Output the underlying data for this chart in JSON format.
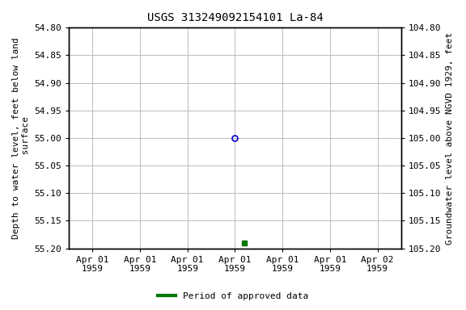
{
  "title": "USGS 313249092154101 La-84",
  "ylabel_left": "Depth to water level, feet below land\n surface",
  "ylabel_right": "Groundwater level above NGVD 1929, feet",
  "ylim_left": [
    54.8,
    55.2
  ],
  "ylim_right": [
    105.2,
    104.8
  ],
  "yticks_left": [
    54.8,
    54.85,
    54.9,
    54.95,
    55.0,
    55.05,
    55.1,
    55.15,
    55.2
  ],
  "yticks_right": [
    105.2,
    105.15,
    105.1,
    105.05,
    105.0,
    104.95,
    104.9,
    104.85,
    104.8
  ],
  "open_marker_value": 55.0,
  "filled_marker_value": 55.19,
  "open_marker_color": "#0000cc",
  "filled_marker_color": "#007700",
  "legend_label": "Period of approved data",
  "legend_color": "#007700",
  "grid_color": "#bbbbbb",
  "background_color": "#ffffff",
  "title_fontsize": 10,
  "axis_label_fontsize": 8,
  "tick_fontsize": 8,
  "xtick_labels": [
    "Apr 01\n1959",
    "Apr 01\n1959",
    "Apr 01\n1959",
    "Apr 01\n1959",
    "Apr 01\n1959",
    "Apr 01\n1959",
    "Apr 02\n1959"
  ]
}
